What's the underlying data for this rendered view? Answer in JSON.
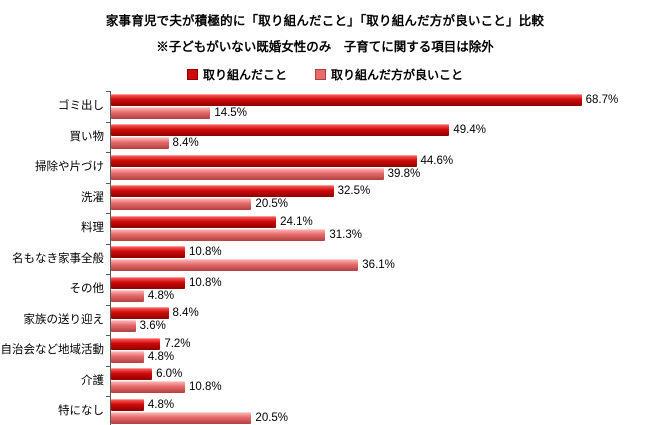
{
  "chart_data": {
    "type": "bar",
    "orientation": "horizontal",
    "title": "家事育児で夫が積極的に「取り組んだこと」「取り組んだ方が良いこと」比較",
    "subtitle": "※子どもがいない既婚女性のみ　子育てに関する項目は除外",
    "categories": [
      "ゴミ出し",
      "買い物",
      "掃除や片づけ",
      "洗濯",
      "料理",
      "名もなき家事全般",
      "その他",
      "家族の送り迎え",
      "自治会など地域活動",
      "介護",
      "特になし"
    ],
    "series": [
      {
        "name": "取り組んだこと",
        "color": "#cf0a0a",
        "color_light": "#ff6a6a",
        "color_dark": "#8e0000",
        "values": [
          68.7,
          49.4,
          44.6,
          32.5,
          24.1,
          10.8,
          10.8,
          8.4,
          7.2,
          6.0,
          4.8
        ]
      },
      {
        "name": "取り組んだ方が良いこと",
        "color": "#e66b6b",
        "color_light": "#ffc0c0",
        "color_dark": "#b04040",
        "values": [
          14.5,
          8.4,
          39.8,
          20.5,
          31.3,
          36.1,
          4.8,
          3.6,
          4.8,
          10.8,
          20.5
        ]
      }
    ],
    "value_suffix": "%",
    "value_decimals": 1,
    "xlim": [
      0,
      75
    ],
    "legend_position": "top",
    "grid": false,
    "axis_color": "#595959"
  }
}
